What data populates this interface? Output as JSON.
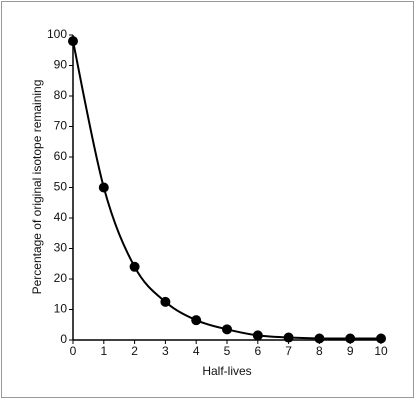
{
  "chart_data": {
    "type": "line",
    "x_label": "Half-lives",
    "y_label": "Percentage of original isotope remaining",
    "x": [
      0,
      1,
      2,
      3,
      4,
      5,
      6,
      7,
      8,
      9,
      10
    ],
    "series": [
      {
        "color": "#000000",
        "values": [
          98,
          50,
          24,
          12.5,
          6.5,
          3.5,
          1.5,
          0.8,
          0.5,
          0.5,
          0.5
        ]
      }
    ],
    "xlim": [
      0,
      10
    ],
    "xticks": [
      0,
      1,
      2,
      3,
      4,
      5,
      6,
      7,
      8,
      9,
      10
    ],
    "ylim": [
      0,
      100
    ],
    "yticks": [
      0,
      10,
      20,
      30,
      40,
      50,
      60,
      70,
      80,
      90,
      100
    ],
    "grid": false
  }
}
